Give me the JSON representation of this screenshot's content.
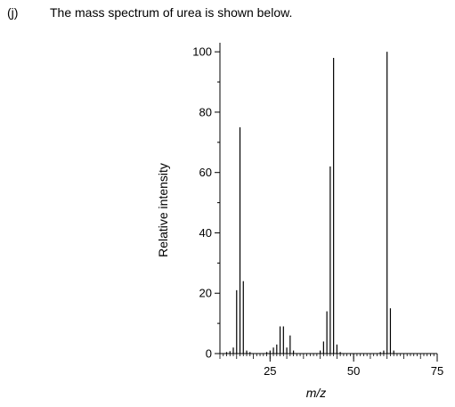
{
  "question": {
    "label": "(j)",
    "text": "The mass spectrum of urea is shown below."
  },
  "chart_data": {
    "type": "bar",
    "title": "",
    "xlabel": "m/z",
    "ylabel": "Relative intensity",
    "xlim": [
      10,
      75
    ],
    "ylim": [
      0,
      103
    ],
    "xticks": [
      25,
      50,
      75
    ],
    "yticks": [
      0,
      20,
      40,
      60,
      80,
      100
    ],
    "grid": false,
    "bar_color": "#000000",
    "peaks": [
      {
        "x": 12,
        "y": 0.5
      },
      {
        "x": 13,
        "y": 0.8
      },
      {
        "x": 14,
        "y": 2
      },
      {
        "x": 15,
        "y": 21
      },
      {
        "x": 16,
        "y": 75
      },
      {
        "x": 17,
        "y": 24
      },
      {
        "x": 18,
        "y": 1
      },
      {
        "x": 19,
        "y": 0.5
      },
      {
        "x": 24,
        "y": 0.5
      },
      {
        "x": 25,
        "y": 1
      },
      {
        "x": 26,
        "y": 2
      },
      {
        "x": 27,
        "y": 3
      },
      {
        "x": 28,
        "y": 9
      },
      {
        "x": 29,
        "y": 9
      },
      {
        "x": 30,
        "y": 2
      },
      {
        "x": 31,
        "y": 6
      },
      {
        "x": 32,
        "y": 1
      },
      {
        "x": 40,
        "y": 1
      },
      {
        "x": 41,
        "y": 4
      },
      {
        "x": 42,
        "y": 14
      },
      {
        "x": 43,
        "y": 62
      },
      {
        "x": 44,
        "y": 98
      },
      {
        "x": 45,
        "y": 3
      },
      {
        "x": 46,
        "y": 0.5
      },
      {
        "x": 58,
        "y": 0.5
      },
      {
        "x": 59,
        "y": 1
      },
      {
        "x": 60,
        "y": 100
      },
      {
        "x": 61,
        "y": 15
      },
      {
        "x": 62,
        "y": 1
      }
    ]
  }
}
